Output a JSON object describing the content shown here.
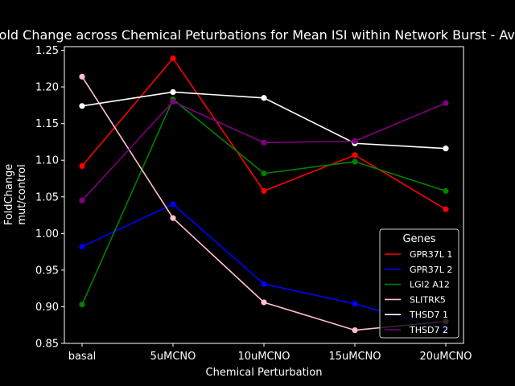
{
  "chart_data": {
    "type": "line",
    "title": "Fold Change across Chemical Peturbations for Mean ISI within Network Burst - Avg",
    "xlabel": "Chemical Perturbation",
    "ylabel_lines": [
      "FoldChange",
      "mut/control"
    ],
    "categories": [
      "basal",
      "5uMCNO",
      "10uMCNO",
      "15uMCNO",
      "20uMCNO"
    ],
    "ylim": [
      0.85,
      1.255
    ],
    "yticks": [
      "0.85",
      "0.90",
      "0.95",
      "1.00",
      "1.05",
      "1.10",
      "1.15",
      "1.20",
      "1.25"
    ],
    "grid": false,
    "legend": {
      "title": "Genes",
      "placement": "lower-right"
    },
    "series": [
      {
        "name": "GPR37L 1",
        "color": "#ff0000",
        "values": [
          1.092,
          1.239,
          1.058,
          1.107,
          1.033
        ]
      },
      {
        "name": "GPR37L 2",
        "color": "#0000ff",
        "values": [
          0.982,
          1.04,
          0.931,
          0.904,
          0.869
        ]
      },
      {
        "name": "LGI2 A12",
        "color": "#008000",
        "values": [
          0.903,
          1.183,
          1.082,
          1.098,
          1.058
        ]
      },
      {
        "name": "SLITRK5",
        "color": "#ffc0cb",
        "values": [
          1.214,
          1.021,
          0.906,
          0.868,
          0.88
        ]
      },
      {
        "name": "THSD7 1",
        "color": "#ffffff",
        "values": [
          1.174,
          1.193,
          1.185,
          1.123,
          1.116
        ]
      },
      {
        "name": "THSD7 2",
        "color": "#800080",
        "values": [
          1.045,
          1.18,
          1.124,
          1.126,
          1.178
        ]
      }
    ]
  }
}
